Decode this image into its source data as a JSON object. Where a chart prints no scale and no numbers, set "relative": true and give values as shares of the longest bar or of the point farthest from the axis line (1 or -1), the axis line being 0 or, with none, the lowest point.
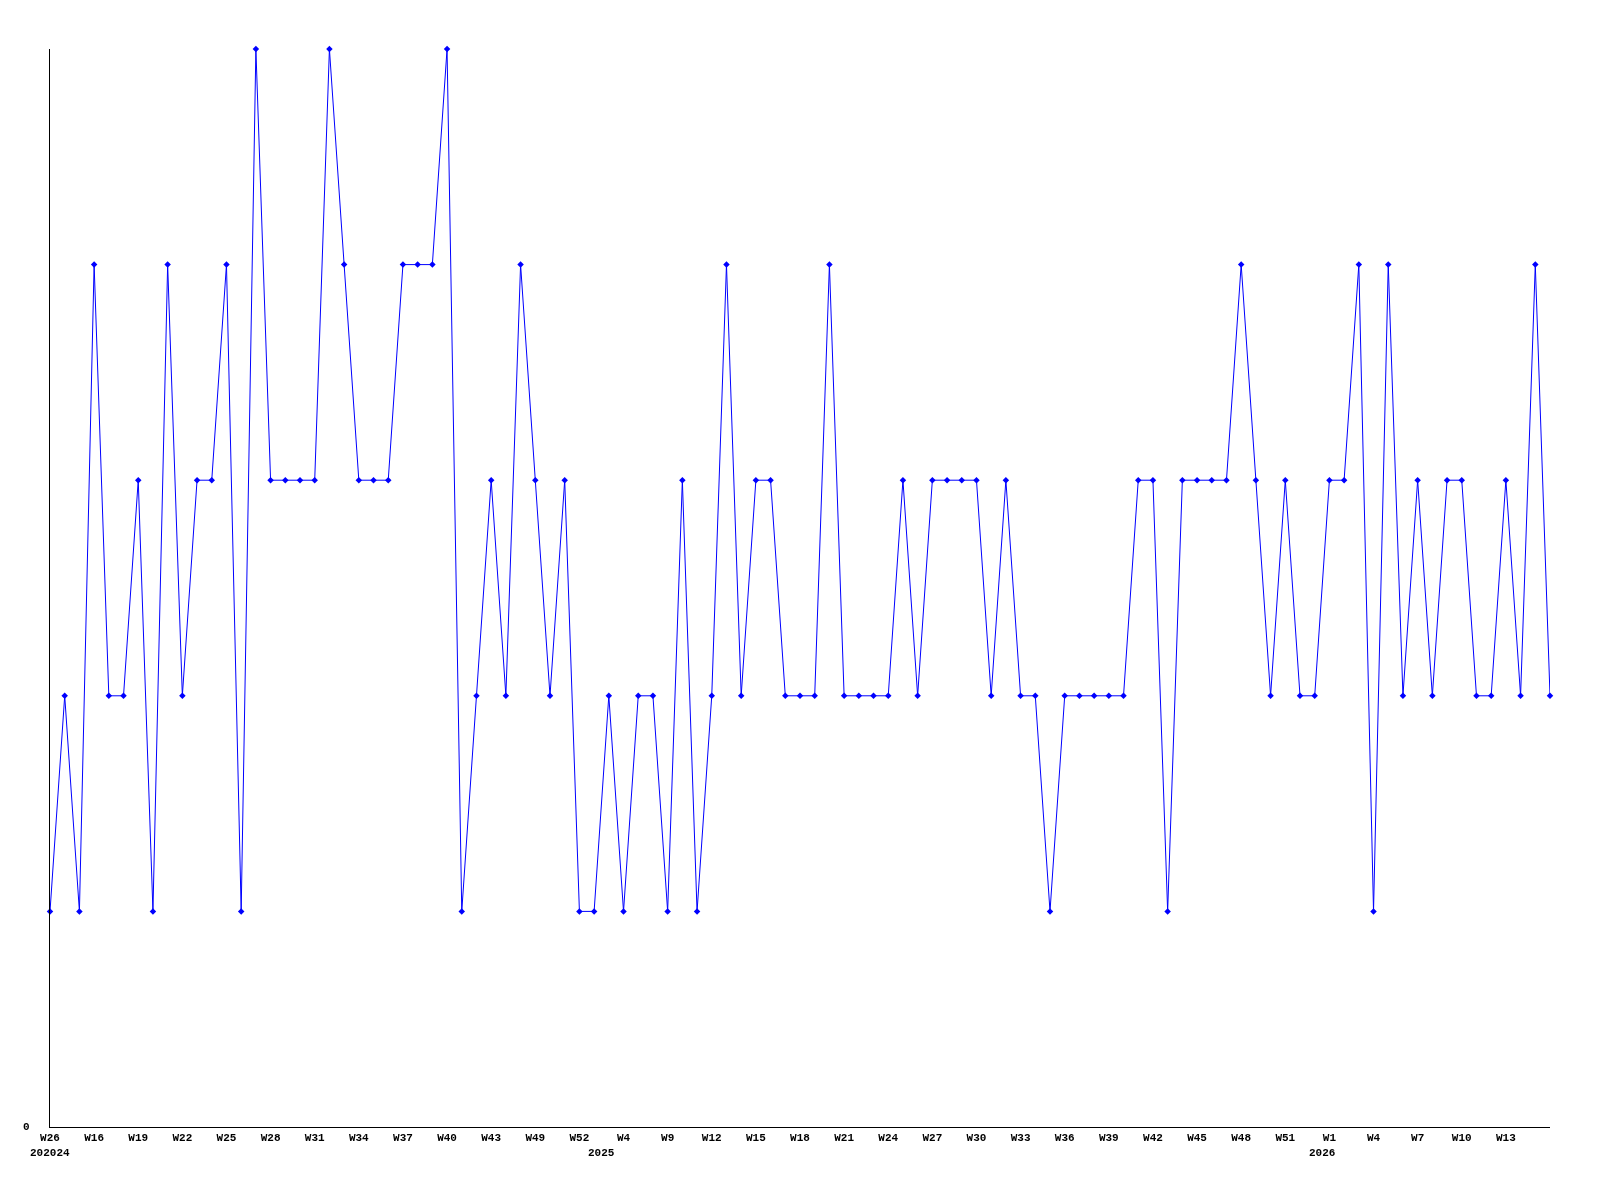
{
  "chart_data": {
    "type": "line",
    "relative": true,
    "marker": "diamond",
    "line_style": "solid",
    "categories": [
      "W26",
      null,
      null,
      "W16",
      null,
      null,
      "W19",
      null,
      null,
      "W22",
      null,
      null,
      "W25",
      null,
      null,
      "W28",
      null,
      null,
      "W31",
      null,
      null,
      "W34",
      null,
      null,
      "W37",
      null,
      null,
      "W40",
      null,
      null,
      "W43",
      null,
      null,
      "W49",
      null,
      null,
      "W52",
      null,
      null,
      "W4",
      null,
      null,
      "W9",
      null,
      null,
      "W12",
      null,
      null,
      "W15",
      null,
      null,
      "W18",
      null,
      null,
      "W21",
      null,
      null,
      "W24",
      null,
      null,
      "W27",
      null,
      null,
      "W30",
      null,
      null,
      "W33",
      null,
      null,
      "W36",
      null,
      null,
      "W39",
      null,
      null,
      "W42",
      null,
      null,
      "W45",
      null,
      null,
      "W48",
      null,
      null,
      "W51",
      null,
      null,
      "W1",
      null,
      null,
      "W4",
      null,
      null,
      "W7",
      null,
      null,
      "W10",
      null,
      null,
      "W13",
      null,
      null,
      null
    ],
    "series": [
      {
        "color": "#0000ff",
        "values": [
          0.2,
          0.4,
          0.2,
          0.8,
          0.4,
          0.4,
          0.6,
          0.2,
          0.8,
          0.4,
          0.6,
          0.6,
          0.8,
          0.2,
          1,
          0.6,
          0.6,
          0.6,
          0.6,
          1,
          0.8,
          0.6,
          0.6,
          0.6,
          0.8,
          0.8,
          0.8,
          1,
          0.2,
          0.4,
          0.6,
          0.4,
          0.8,
          0.6,
          0.4,
          0.6,
          0.2,
          0.2,
          0.4,
          0.2,
          0.4,
          0.4,
          0.2,
          0.6,
          0.2,
          0.4,
          0.8,
          0.4,
          0.6,
          0.6,
          0.4,
          0.4,
          0.4,
          0.8,
          0.4,
          0.4,
          0.4,
          0.4,
          0.6,
          0.4,
          0.6,
          0.6,
          0.6,
          0.6,
          0.4,
          0.6,
          0.4,
          0.4,
          0.2,
          0.4,
          0.4,
          0.4,
          0.4,
          0.4,
          0.6,
          0.6,
          0.2,
          0.6,
          0.6,
          0.6,
          0.6,
          0.8,
          0.6,
          0.4,
          0.6,
          0.4,
          0.4,
          0.6,
          0.6,
          0.8,
          0.2,
          0.8,
          0.4,
          0.6,
          0.4,
          0.6,
          0.6,
          0.4,
          0.4,
          0.6,
          0.4,
          0.8,
          0.4
        ]
      }
    ],
    "annotations": [
      "0",
      "202024",
      "2025",
      "2026"
    ]
  }
}
